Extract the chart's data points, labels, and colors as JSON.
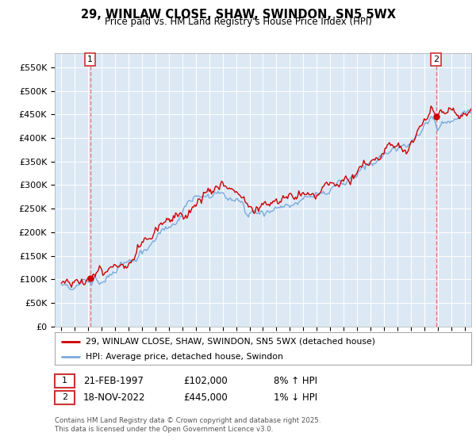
{
  "title": "29, WINLAW CLOSE, SHAW, SWINDON, SN5 5WX",
  "subtitle": "Price paid vs. HM Land Registry's House Price Index (HPI)",
  "plot_bg_color": "#dce9f5",
  "red_line_label": "29, WINLAW CLOSE, SHAW, SWINDON, SN5 5WX (detached house)",
  "blue_line_label": "HPI: Average price, detached house, Swindon",
  "annotation1_date": "21-FEB-1997",
  "annotation1_price": "£102,000",
  "annotation1_hpi": "8% ↑ HPI",
  "annotation2_date": "18-NOV-2022",
  "annotation2_price": "£445,000",
  "annotation2_hpi": "1% ↓ HPI",
  "sale1_year": 1997.13,
  "sale1_price": 102000,
  "sale2_year": 2022.88,
  "sale2_price": 445000,
  "ylim": [
    0,
    580000
  ],
  "xlim": [
    1994.5,
    2025.5
  ],
  "yticks": [
    0,
    50000,
    100000,
    150000,
    200000,
    250000,
    300000,
    350000,
    400000,
    450000,
    500000,
    550000
  ],
  "ytick_labels": [
    "£0",
    "£50K",
    "£100K",
    "£150K",
    "£200K",
    "£250K",
    "£300K",
    "£350K",
    "£400K",
    "£450K",
    "£500K",
    "£550K"
  ],
  "xticks": [
    1995,
    1996,
    1997,
    1998,
    1999,
    2000,
    2001,
    2002,
    2003,
    2004,
    2005,
    2006,
    2007,
    2008,
    2009,
    2010,
    2011,
    2012,
    2013,
    2014,
    2015,
    2016,
    2017,
    2018,
    2019,
    2020,
    2021,
    2022,
    2023,
    2024,
    2025
  ],
  "footer": "Contains HM Land Registry data © Crown copyright and database right 2025.\nThis data is licensed under the Open Government Licence v3.0.",
  "red_color": "#cc0000",
  "blue_color": "#7aaadd",
  "dashed_color": "#dd6666"
}
